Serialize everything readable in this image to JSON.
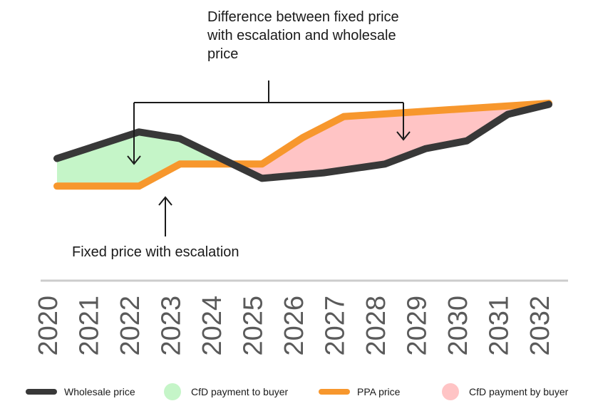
{
  "chart_data": {
    "type": "line",
    "x": [
      2020,
      2021,
      2022,
      2023,
      2024,
      2025,
      2026,
      2027,
      2028,
      2029,
      2030,
      2031,
      2032
    ],
    "x_tick_labels": [
      "2020",
      "2021",
      "2022",
      "2023",
      "2024",
      "2025",
      "2026",
      "2027",
      "2028",
      "2029",
      "2030",
      "2031",
      "2032"
    ],
    "series": [
      {
        "name": "Wholesale price",
        "color": "#383838",
        "points": [
          [
            2020,
            30
          ],
          [
            2022,
            54
          ],
          [
            2023,
            48
          ],
          [
            2025,
            12
          ],
          [
            2026.5,
            17
          ],
          [
            2028,
            25
          ],
          [
            2029,
            39
          ],
          [
            2030,
            46
          ],
          [
            2031,
            70
          ],
          [
            2032,
            79
          ]
        ]
      },
      {
        "name": "PPA price",
        "color": "#f7972d",
        "points": [
          [
            2020,
            5
          ],
          [
            2022,
            5
          ],
          [
            2023,
            25
          ],
          [
            2025,
            25
          ],
          [
            2026,
            49
          ],
          [
            2027,
            68
          ],
          [
            2032,
            80
          ]
        ]
      }
    ],
    "fills": [
      {
        "name": "CfD payment to buyer",
        "color": "#c5f5c8"
      },
      {
        "name": "CfD payment by buyer",
        "color": "#ffc4c5"
      }
    ],
    "annotations": {
      "top": "Difference between fixed price with escalation and wholesale price",
      "bottom": "Fixed price with escalation"
    },
    "grid": false
  }
}
